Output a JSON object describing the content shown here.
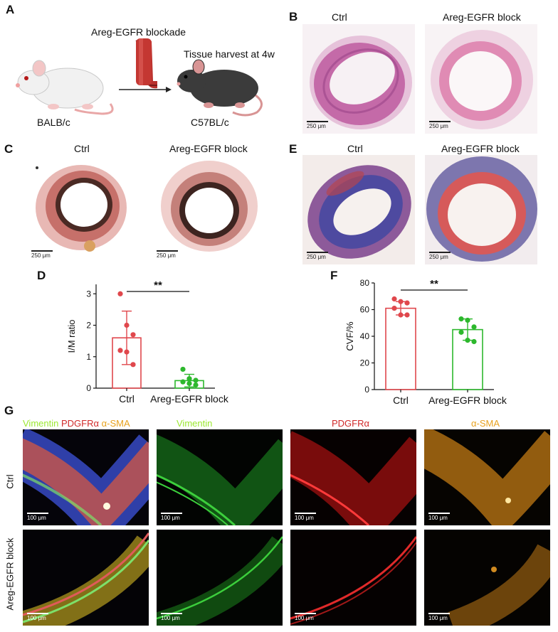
{
  "panels": {
    "A": {
      "letter": "A",
      "treatment": "Areg-EGFR blockade",
      "harvest": "Tissue harvest at 4w",
      "donor": "BALB/c",
      "recipient": "C57BL/c"
    },
    "B": {
      "letter": "B",
      "left_title": "Ctrl",
      "right_title": "Areg-EGFR block",
      "scale": "250 μm"
    },
    "C": {
      "letter": "C",
      "left_title": "Ctrl",
      "right_title": "Areg-EGFR block",
      "scale": "250 μm"
    },
    "E": {
      "letter": "E",
      "left_title": "Ctrl",
      "right_title": "Areg-EGFR block",
      "scale": "250 μm"
    },
    "D": {
      "letter": "D",
      "significance": "**"
    },
    "F": {
      "letter": "F",
      "significance": "**"
    },
    "G": {
      "letter": "G",
      "merge_labels": [
        "Vimentin",
        "PDGFRα",
        "α-SMA"
      ],
      "channel_labels": [
        "Vimentin",
        "PDGFRα",
        "α-SMA"
      ],
      "row_labels": [
        "Ctrl",
        "Areg-EGFR block"
      ],
      "scale": "100 μm"
    }
  },
  "colors": {
    "ctrl": "#e0474c",
    "block": "#2db82d",
    "vimentin": "#9be830",
    "pdgfra": "#d12a2a",
    "asma": "#e8a21e"
  },
  "chart_data": [
    {
      "panel": "D",
      "type": "bar",
      "categories": [
        "Ctrl",
        "Areg-EGFR block"
      ],
      "values": [
        1.6,
        0.24
      ],
      "error_sd": [
        0.85,
        0.2
      ],
      "points": [
        [
          3.0,
          2.0,
          1.7,
          1.2,
          1.15,
          0.75
        ],
        [
          0.6,
          0.3,
          0.25,
          0.2,
          0.15,
          0.1
        ]
      ],
      "ylabel": "I/M ratio",
      "ylim": [
        0,
        3.3
      ],
      "yticks": [
        0,
        1,
        2,
        3
      ]
    },
    {
      "panel": "F",
      "type": "bar",
      "categories": [
        "Ctrl",
        "Areg-EGFR block"
      ],
      "values": [
        61,
        45
      ],
      "error_sd": [
        5,
        8
      ],
      "points": [
        [
          68,
          66,
          65,
          61,
          56,
          56
        ],
        [
          53,
          52,
          47,
          43,
          37,
          36
        ]
      ],
      "ylabel": "CVF/%",
      "ylim": [
        0,
        80
      ],
      "yticks": [
        0,
        20,
        40,
        60,
        80
      ]
    }
  ]
}
